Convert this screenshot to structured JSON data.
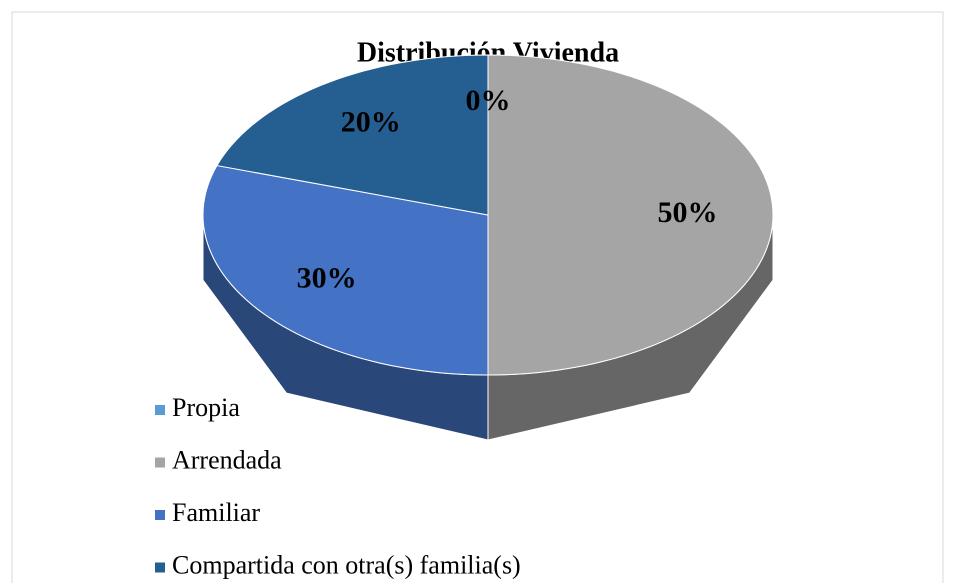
{
  "chart_data": {
    "type": "pie",
    "title": "Distribución Vivienda",
    "categories": [
      "Propia",
      "Arrendada",
      "Familiar",
      "Compartida con otra(s) familia(s)"
    ],
    "values": [
      0,
      50,
      30,
      20
    ],
    "value_labels": [
      "0%",
      "50%",
      "30%",
      "20%"
    ],
    "colors": [
      "#5b9bd5",
      "#a5a5a5",
      "#4472c4",
      "#255e91"
    ],
    "legend": "bottom-left"
  }
}
